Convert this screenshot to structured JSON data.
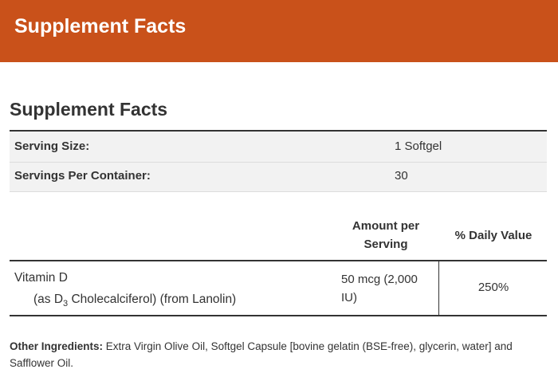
{
  "header": {
    "title": "Supplement Facts"
  },
  "facts": {
    "heading": "Supplement Facts",
    "serving": [
      {
        "label": "Serving Size:",
        "value": "1 Softgel"
      },
      {
        "label": "Servings Per Container:",
        "value": "30"
      }
    ],
    "columns": [
      "Amount per Serving",
      "% Daily Value"
    ],
    "nutrients": [
      {
        "name": "Vitamin D",
        "detail_prefix": "(as D",
        "detail_subscript": "3",
        "detail_suffix": " Cholecalciferol) (from Lanolin)",
        "amount": "50 mcg (2,000 IU)",
        "daily_value": "250%"
      }
    ],
    "other_ingredients": {
      "label": "Other Ingredients:",
      "text": "Extra Virgin Olive Oil, Softgel Capsule [bovine gelatin (BSE-free), glycerin, water] and Safflower Oil."
    }
  }
}
